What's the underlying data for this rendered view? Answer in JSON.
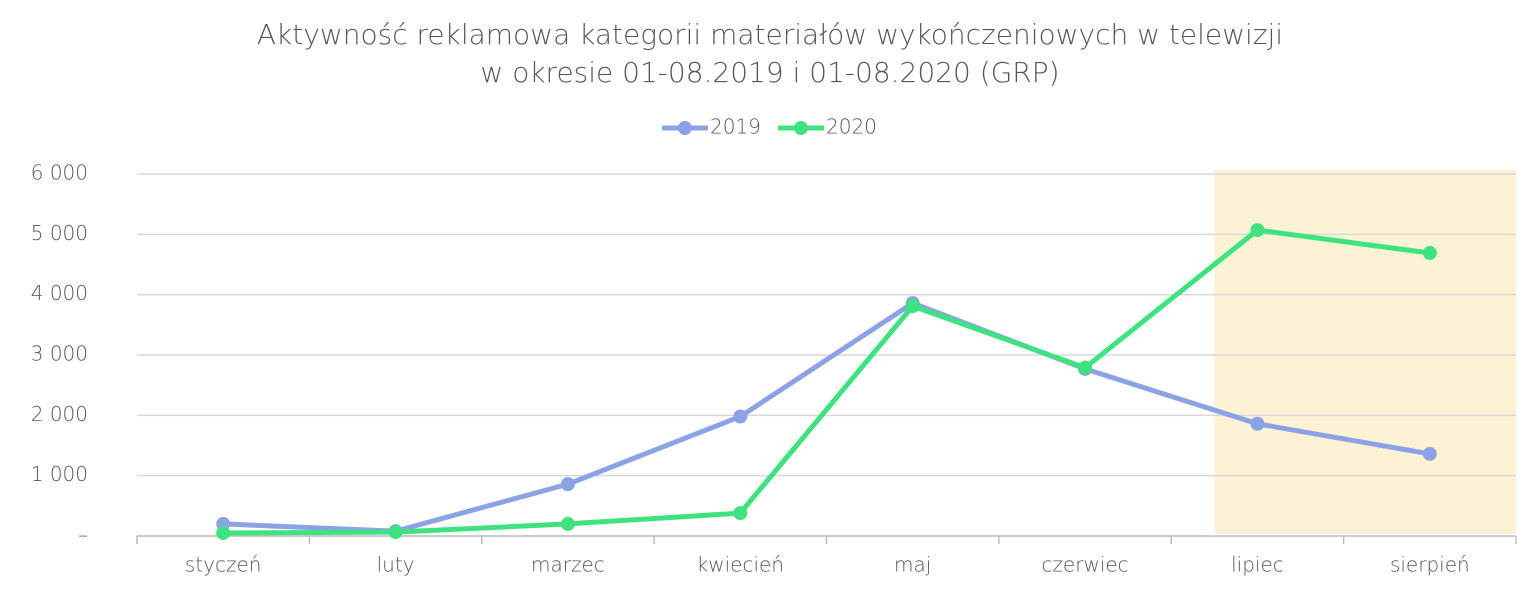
{
  "chart_data": {
    "type": "line",
    "title": [
      "Aktywność reklamowa kategorii materiałów wykończeniowych w telewizji",
      "w okresie 01-08.2019 i 01-08.2020 (GRP)"
    ],
    "categories": [
      "styczeń",
      "luty",
      "marzec",
      "kwiecień",
      "maj",
      "czerwiec",
      "lipiec",
      "sierpień"
    ],
    "series": [
      {
        "name": "2019",
        "color": "#8ba3e6",
        "values": [
          200,
          80,
          860,
          1980,
          3860,
          2770,
          1860,
          1360
        ]
      },
      {
        "name": "2020",
        "color": "#3ee37f",
        "values": [
          50,
          65,
          200,
          380,
          3810,
          2790,
          5070,
          4690
        ]
      }
    ],
    "ylim": [
      0,
      6000
    ],
    "yticks": [
      {
        "value": 0,
        "label": "–"
      },
      {
        "value": 1000,
        "label": "1 000"
      },
      {
        "value": 2000,
        "label": "2 000"
      },
      {
        "value": 3000,
        "label": "3 000"
      },
      {
        "value": 4000,
        "label": "4 000"
      },
      {
        "value": 5000,
        "label": "5 000"
      },
      {
        "value": 6000,
        "label": "6 000"
      }
    ],
    "grid": true,
    "legend": "top",
    "highlight": {
      "from": 6,
      "to": 7,
      "color": "#fcf2d4"
    }
  }
}
